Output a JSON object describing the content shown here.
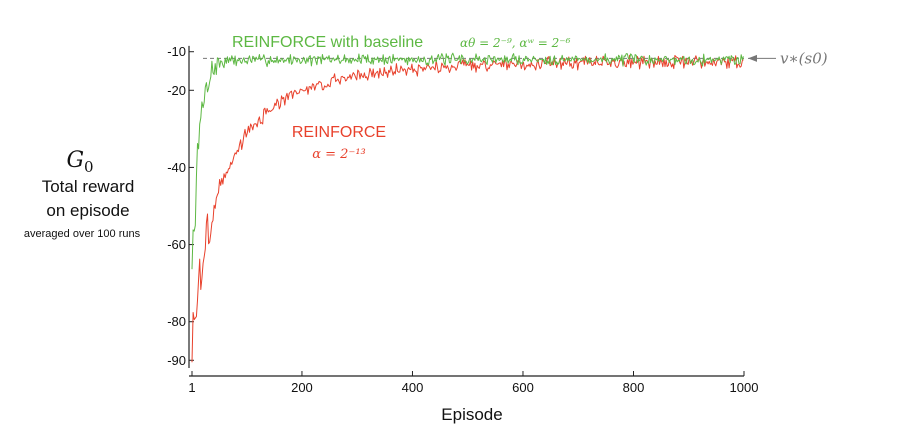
{
  "chart_data": {
    "type": "line",
    "xlabel": "Episode",
    "ylabel": {
      "symbol": "G",
      "subscript": "0",
      "line1": "Total reward",
      "line2": "on episode",
      "line3": "averaged over 100 runs"
    },
    "xlim": [
      1,
      1000
    ],
    "ylim": [
      -92,
      -8
    ],
    "xticks": [
      {
        "value": 1,
        "label": "1"
      },
      {
        "value": 200,
        "label": "200"
      },
      {
        "value": 400,
        "label": "400"
      },
      {
        "value": 600,
        "label": "600"
      },
      {
        "value": 800,
        "label": "800"
      },
      {
        "value": 1000,
        "label": "1000"
      }
    ],
    "yticks": [
      {
        "value": -10,
        "label": "-10"
      },
      {
        "value": -20,
        "label": "-20"
      },
      {
        "value": -40,
        "label": "-40"
      },
      {
        "value": -60,
        "label": "-60"
      },
      {
        "value": -80,
        "label": "-80"
      },
      {
        "value": -90,
        "label": "-90"
      }
    ],
    "series": [
      {
        "name": "REINFORCE with baseline",
        "param_label": "αθ = 2⁻⁹, αʷ = 2⁻⁶",
        "color": "#5db843",
        "shape": {
          "start": -68,
          "plateau": -12.0,
          "tau": 9,
          "noise": 1.8,
          "seed": 7
        },
        "x": [
          1,
          10,
          20,
          30,
          40,
          50,
          60,
          80,
          100,
          150,
          200,
          300,
          400,
          500,
          600,
          700,
          800,
          900,
          1000
        ],
        "values": [
          -68,
          -40,
          -24,
          -17,
          -14.5,
          -13,
          -12.5,
          -12.3,
          -12.2,
          -12.1,
          -12.1,
          -12,
          -12,
          -12,
          -12,
          -12,
          -12,
          -12,
          -12
        ]
      },
      {
        "name": "REINFORCE",
        "param_label": "α = 2⁻¹³",
        "color": "#e8412c",
        "shape": {
          "start": -88,
          "plateau": -12.6,
          "tau": 120,
          "noise": 2.0,
          "seed": 3
        },
        "x": [
          1,
          10,
          20,
          50,
          100,
          150,
          200,
          300,
          400,
          500,
          600,
          700,
          800,
          900,
          1000
        ],
        "values": [
          -88,
          -75,
          -64,
          -45,
          -31,
          -24,
          -20,
          -16,
          -14.5,
          -13.5,
          -13,
          -12.8,
          -12.7,
          -12.6,
          -12.6
        ]
      }
    ],
    "reference": {
      "label": "v∗(s0)",
      "value": -12,
      "color": "#777777",
      "style": "dashed"
    },
    "grid": false
  }
}
